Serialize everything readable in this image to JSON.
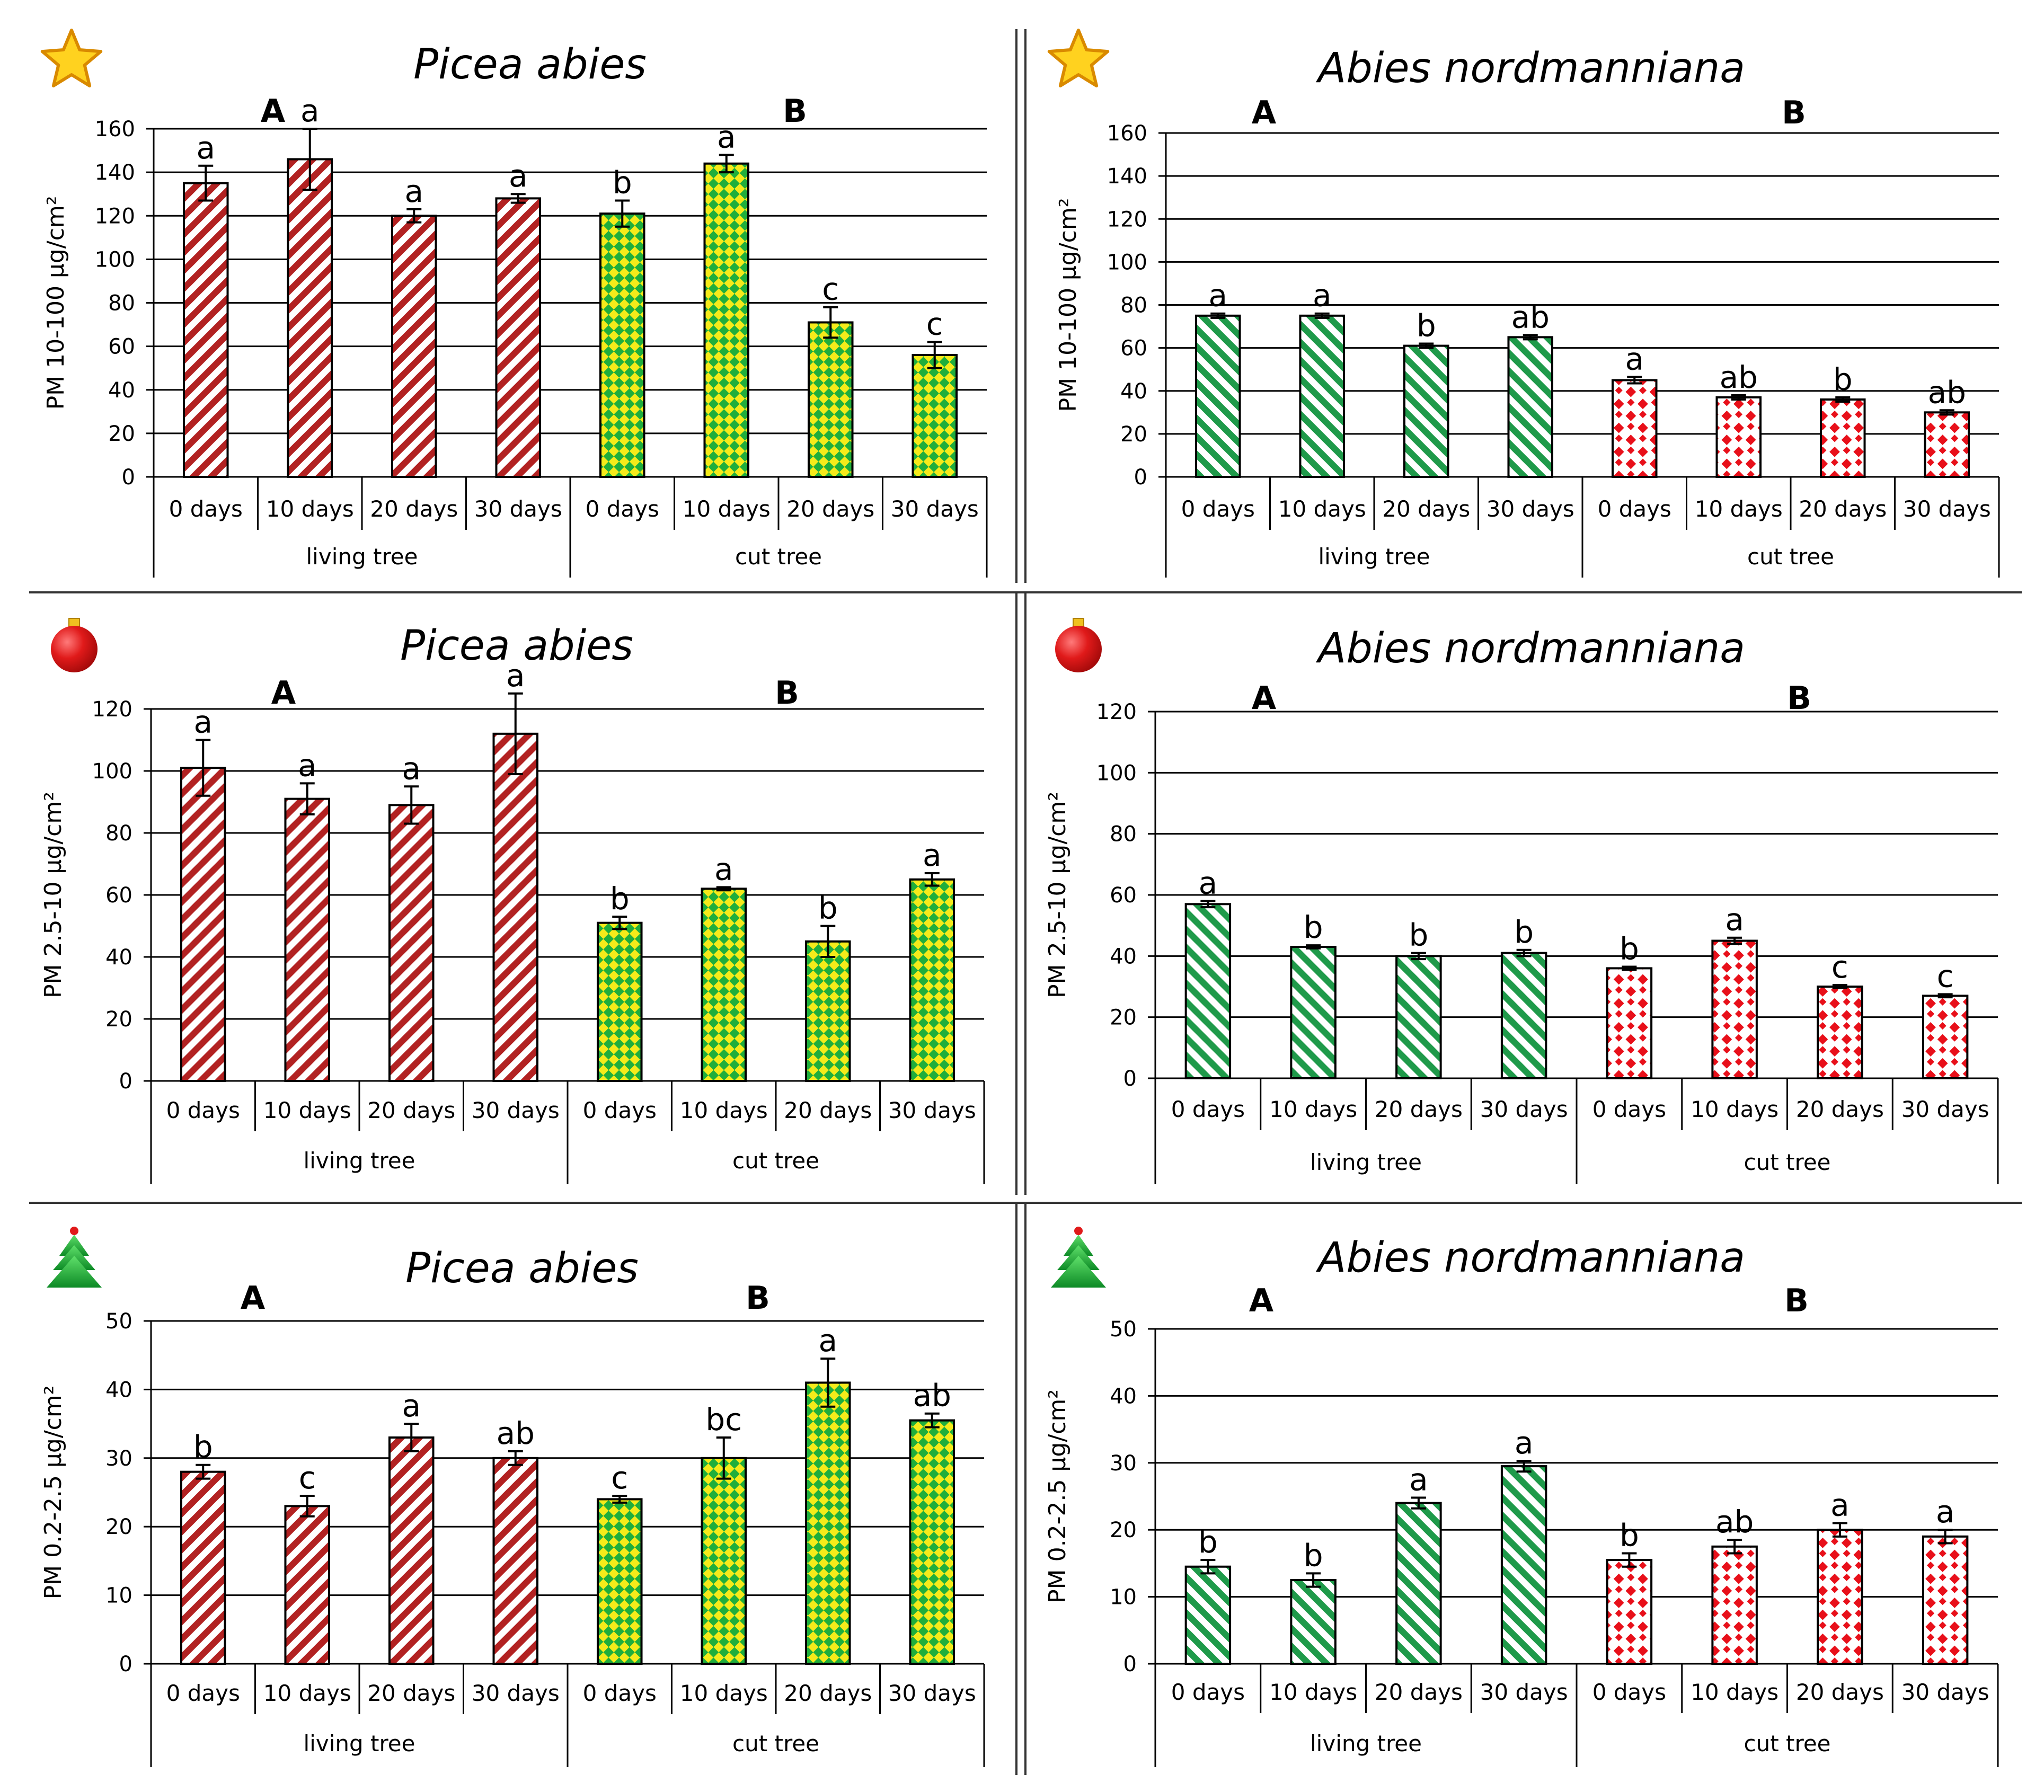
{
  "chart_data": [
    {
      "panel": "top-left",
      "type": "bar",
      "icon": "star-icon",
      "title": "Picea abies",
      "ylabel": "PM 10-100 μg/cm²",
      "ylim": [
        0,
        160
      ],
      "yticks": [
        0,
        20,
        40,
        60,
        80,
        100,
        120,
        140,
        160
      ],
      "categories": [
        "0 days",
        "10 days",
        "20 days",
        "30 days",
        "0 days",
        "10 days",
        "20 days",
        "30 days"
      ],
      "groups": [
        "living tree",
        "cut tree"
      ],
      "group_letters": [
        "A",
        "B"
      ],
      "values": [
        135,
        146,
        120,
        128,
        121,
        144,
        71,
        56
      ],
      "errors": [
        8,
        14,
        3,
        2,
        6,
        4,
        7,
        6
      ],
      "letters": [
        "a",
        "a",
        "a",
        "a",
        "b",
        "a",
        "c",
        "c"
      ],
      "patterns": [
        "red-stripe",
        "red-stripe",
        "red-stripe",
        "red-stripe",
        "green-yellow-check",
        "green-yellow-check",
        "green-yellow-check",
        "green-yellow-check"
      ]
    },
    {
      "panel": "top-right",
      "type": "bar",
      "icon": "star-icon",
      "title": "Abies nordmanniana",
      "ylabel": "PM 10-100 μg/cm²",
      "ylim": [
        0,
        160
      ],
      "yticks": [
        0,
        20,
        40,
        60,
        80,
        100,
        120,
        140,
        160
      ],
      "categories": [
        "0 days",
        "10 days",
        "20 days",
        "30 days",
        "0 days",
        "10 days",
        "20 days",
        "30 days"
      ],
      "groups": [
        "living tree",
        "cut tree"
      ],
      "group_letters": [
        "A",
        "B"
      ],
      "values": [
        75,
        75,
        61,
        65,
        45,
        37,
        36,
        30
      ],
      "errors": [
        1,
        1,
        1,
        1,
        1.5,
        1,
        1,
        1
      ],
      "letters": [
        "a",
        "a",
        "b",
        "ab",
        "a",
        "ab",
        "b",
        "ab"
      ],
      "patterns": [
        "green-stripe",
        "green-stripe",
        "green-stripe",
        "green-stripe",
        "red-diamond",
        "red-diamond",
        "red-diamond",
        "red-diamond"
      ]
    },
    {
      "panel": "middle-left",
      "type": "bar",
      "icon": "ornament-icon",
      "title": "Picea abies",
      "ylabel": "PM 2.5-10 μg/cm²",
      "ylim": [
        0,
        120
      ],
      "yticks": [
        0,
        20,
        40,
        60,
        80,
        100,
        120
      ],
      "categories": [
        "0 days",
        "10 days",
        "20 days",
        "30 days",
        "0 days",
        "10 days",
        "20 days",
        "30 days"
      ],
      "groups": [
        "living tree",
        "cut tree"
      ],
      "group_letters": [
        "A",
        "B"
      ],
      "values": [
        101,
        91,
        89,
        112,
        51,
        62,
        45,
        65
      ],
      "errors": [
        9,
        5,
        6,
        13,
        2,
        0.5,
        5,
        2
      ],
      "letters": [
        "a",
        "a",
        "a",
        "a",
        "b",
        "a",
        "b",
        "a"
      ],
      "patterns": [
        "red-stripe",
        "red-stripe",
        "red-stripe",
        "red-stripe",
        "green-yellow-check",
        "green-yellow-check",
        "green-yellow-check",
        "green-yellow-check"
      ]
    },
    {
      "panel": "middle-right",
      "type": "bar",
      "icon": "ornament-icon",
      "title": "Abies nordmanniana",
      "ylabel": "PM 2.5-10 μg/cm²",
      "ylim": [
        0,
        120
      ],
      "yticks": [
        0,
        20,
        40,
        60,
        80,
        100,
        120
      ],
      "categories": [
        "0 days",
        "10 days",
        "20 days",
        "30 days",
        "0 days",
        "10 days",
        "20 days",
        "30 days"
      ],
      "groups": [
        "living tree",
        "cut tree"
      ],
      "group_letters": [
        "A",
        "B"
      ],
      "values": [
        57,
        43,
        40,
        41,
        36,
        45,
        30,
        27
      ],
      "errors": [
        1,
        0.5,
        1,
        1,
        0.5,
        1,
        0.5,
        0.5
      ],
      "letters": [
        "a",
        "b",
        "b",
        "b",
        "b",
        "a",
        "c",
        "c"
      ],
      "patterns": [
        "green-stripe",
        "green-stripe",
        "green-stripe",
        "green-stripe",
        "red-diamond",
        "red-diamond",
        "red-diamond",
        "red-diamond"
      ]
    },
    {
      "panel": "bottom-left",
      "type": "bar",
      "icon": "tree-icon",
      "title": "Picea abies",
      "ylabel": "PM 0.2-2.5 μg/cm²",
      "ylim": [
        0,
        50
      ],
      "yticks": [
        0,
        10,
        20,
        30,
        40,
        50
      ],
      "categories": [
        "0 days",
        "10 days",
        "20 days",
        "30 days",
        "0 days",
        "10 days",
        "20 days",
        "30 days"
      ],
      "groups": [
        "living tree",
        "cut tree"
      ],
      "group_letters": [
        "A",
        "B"
      ],
      "values": [
        28,
        23,
        33,
        30,
        24,
        30,
        41,
        35.5
      ],
      "errors": [
        1,
        1.5,
        2,
        1,
        0.5,
        3,
        3.5,
        1
      ],
      "letters": [
        "b",
        "c",
        "a",
        "ab",
        "c",
        "bc",
        "a",
        "ab"
      ],
      "patterns": [
        "red-stripe",
        "red-stripe",
        "red-stripe",
        "red-stripe",
        "green-yellow-check",
        "green-yellow-check",
        "green-yellow-check",
        "green-yellow-check"
      ]
    },
    {
      "panel": "bottom-right",
      "type": "bar",
      "icon": "tree-icon",
      "title": "Abies nordmanniana",
      "ylabel": "PM 0.2-2.5 μg/cm²",
      "ylim": [
        0,
        50
      ],
      "yticks": [
        0,
        10,
        20,
        30,
        40,
        50
      ],
      "categories": [
        "0 days",
        "10 days",
        "20 days",
        "30 days",
        "0 days",
        "10 days",
        "20 days",
        "30 days"
      ],
      "groups": [
        "living tree",
        "cut tree"
      ],
      "group_letters": [
        "A",
        "B"
      ],
      "values": [
        14.5,
        12.5,
        24,
        29.5,
        15.5,
        17.5,
        20,
        19
      ],
      "errors": [
        1,
        1,
        0.8,
        0.8,
        1,
        1,
        1,
        1
      ],
      "letters": [
        "b",
        "b",
        "a",
        "a",
        "b",
        "ab",
        "a",
        "a"
      ],
      "patterns": [
        "green-stripe",
        "green-stripe",
        "green-stripe",
        "green-stripe",
        "red-diamond",
        "red-diamond",
        "red-diamond",
        "red-diamond"
      ]
    }
  ],
  "colors": {
    "red": "#b22222",
    "green": "#1f9a4a",
    "yellow": "#f5eb1a",
    "diamond_red": "#e8101a",
    "star_fill": "#ffd21f",
    "star_stroke": "#d98a00",
    "ornament": "#e01a1a",
    "tree": "#19b03a"
  }
}
